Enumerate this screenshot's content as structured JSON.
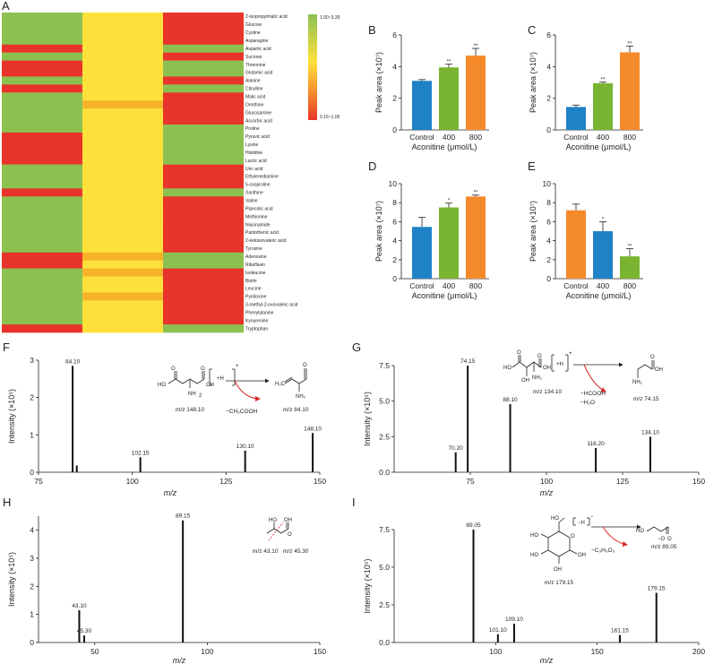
{
  "heatmap": {
    "label": "A",
    "metabolites": [
      "2-isopropylmalic acid",
      "Glucose",
      "Cystine",
      "Asparagine",
      "Aspartic acid",
      "Sucrose",
      "Threonine",
      "Glutamic acid",
      "Alanine",
      "Citrulline",
      "Malic acid",
      "Ornithine",
      "Glucosamine",
      "Ascorbic acid",
      "Proline",
      "Pyruvic acid",
      "Lysine",
      "Histidine",
      "Lactic acid",
      "Uric acid",
      "Ethylenediamine",
      "5-oxoproline",
      "Xanthine",
      "Valine",
      "Pipecolic acid",
      "Methionine",
      "Niacinamide",
      "Pantothenic acid",
      "2-ketoisovaleric acid",
      "Tyrosine",
      "Adenosine",
      "Riboflavin",
      "Isoleucine",
      "Biotin",
      "Leucine",
      "Pyridoxine",
      "3-methyl-2-oxovaleric acid",
      "Phenylalanine",
      "Kynurenine",
      "Tryptophan"
    ],
    "cells": [
      [
        "g",
        "y",
        "r"
      ],
      [
        "g",
        "y",
        "r"
      ],
      [
        "g",
        "y",
        "r"
      ],
      [
        "g",
        "y",
        "r"
      ],
      [
        "r",
        "y",
        "g"
      ],
      [
        "g",
        "y",
        "r"
      ],
      [
        "r",
        "y",
        "g"
      ],
      [
        "r",
        "y",
        "g"
      ],
      [
        "g",
        "y",
        "r"
      ],
      [
        "r",
        "y",
        "g"
      ],
      [
        "g",
        "y",
        "r"
      ],
      [
        "g",
        "o",
        "r"
      ],
      [
        "g",
        "y",
        "r"
      ],
      [
        "g",
        "y",
        "r"
      ],
      [
        "g",
        "y",
        "g"
      ],
      [
        "r",
        "y",
        "g"
      ],
      [
        "r",
        "y",
        "g"
      ],
      [
        "r",
        "y",
        "g"
      ],
      [
        "r",
        "y",
        "g"
      ],
      [
        "g",
        "y",
        "r"
      ],
      [
        "g",
        "y",
        "r"
      ],
      [
        "g",
        "y",
        "r"
      ],
      [
        "r",
        "y",
        "g"
      ],
      [
        "g",
        "y",
        "r"
      ],
      [
        "g",
        "y",
        "r"
      ],
      [
        "g",
        "y",
        "r"
      ],
      [
        "g",
        "y",
        "r"
      ],
      [
        "g",
        "y",
        "r"
      ],
      [
        "g",
        "y",
        "r"
      ],
      [
        "g",
        "y",
        "r"
      ],
      [
        "r",
        "o",
        "g"
      ],
      [
        "r",
        "y",
        "g"
      ],
      [
        "g",
        "o",
        "r"
      ],
      [
        "g",
        "y",
        "r"
      ],
      [
        "g",
        "y",
        "r"
      ],
      [
        "g",
        "o",
        "r"
      ],
      [
        "g",
        "y",
        "r"
      ],
      [
        "g",
        "y",
        "r"
      ],
      [
        "g",
        "y",
        "r"
      ],
      [
        "r",
        "y",
        "g"
      ]
    ],
    "colors": {
      "g": "#8cc152",
      "y": "#fde13a",
      "o": "#f7b22a",
      "r": "#e8342a"
    },
    "legend": {
      "high": "1.00~3.39",
      "low": "0.16~1.00"
    }
  },
  "bar_panels": {
    "xlabel": "Aconitine (μmol/L)",
    "ylabel": "Peak area (×10⁷)",
    "categories": [
      "Control",
      "400",
      "800"
    ],
    "colors": [
      "#1f82c7",
      "#7ab532",
      "#f58a2b"
    ],
    "colors_E": [
      "#f58a2b",
      "#1f82c7",
      "#7ab532"
    ],
    "sig": "**"
  },
  "spectra": {
    "xlabel": "m/z",
    "ylabel": "Intensity (×10⁵)"
  },
  "chemistry": {
    "F": {
      "parent": "m/z 148.10",
      "product": "m/z 84.10",
      "loss": "−CH₃COOH"
    },
    "G": {
      "parent": "m/z 134.10",
      "product": "m/z 74.15",
      "loss1": "−HCOOH",
      "loss2": "−H₂O"
    },
    "H": {
      "left": "m/z 43.10",
      "right": "m/z 45.30"
    },
    "I": {
      "parent": "m/z 179.15",
      "product": "m/z 89.05",
      "loss": "−C₃H₆O₃"
    }
  },
  "chart_data": [
    {
      "panel": "B",
      "type": "bar",
      "categories": [
        "Control",
        "400",
        "800"
      ],
      "values": [
        3.1,
        3.95,
        4.7
      ],
      "errors": [
        0.08,
        0.2,
        0.45
      ],
      "significance": [
        "",
        "**",
        "**"
      ],
      "ylim": [
        0,
        6
      ],
      "yticks": [
        0,
        2,
        4,
        6
      ],
      "ylabel": "Peak area (×10⁷)",
      "xlabel": "Aconitine (μmol/L)"
    },
    {
      "panel": "C",
      "type": "bar",
      "categories": [
        "Control",
        "400",
        "800"
      ],
      "values": [
        1.45,
        2.95,
        4.9
      ],
      "errors": [
        0.12,
        0.07,
        0.4
      ],
      "significance": [
        "",
        "**",
        "**"
      ],
      "ylim": [
        0,
        6
      ],
      "yticks": [
        0,
        2,
        4,
        6
      ],
      "ylabel": "Peak area (×10⁷)",
      "xlabel": "Aconitine (μmol/L)"
    },
    {
      "panel": "D",
      "type": "bar",
      "categories": [
        "Control",
        "400",
        "800"
      ],
      "values": [
        5.45,
        7.5,
        8.65
      ],
      "errors": [
        1.0,
        0.45,
        0.15
      ],
      "significance": [
        "",
        "*",
        "**"
      ],
      "ylim": [
        0,
        10
      ],
      "yticks": [
        0,
        2,
        4,
        6,
        8,
        10
      ],
      "ylabel": "Peak area (×10⁷)",
      "xlabel": "Aconitine (μmol/L)"
    },
    {
      "panel": "E",
      "type": "bar",
      "categories": [
        "Control",
        "400",
        "800"
      ],
      "values": [
        7.2,
        5.0,
        2.35
      ],
      "errors": [
        0.65,
        1.0,
        0.8
      ],
      "significance": [
        "",
        "*",
        "**"
      ],
      "ylim": [
        0,
        10
      ],
      "yticks": [
        0,
        2,
        4,
        6,
        8,
        10
      ],
      "ylabel": "Peak area (×10⁷)",
      "xlabel": "Aconitine (μmol/L)"
    },
    {
      "panel": "F",
      "type": "spectrum",
      "xlim": [
        75,
        150
      ],
      "xticks": [
        75,
        100,
        125,
        150
      ],
      "ylim": [
        0,
        3
      ],
      "yticks": [
        0,
        1,
        2,
        3
      ],
      "peaks": [
        [
          84.1,
          2.85,
          "84.10"
        ],
        [
          85.2,
          0.18,
          ""
        ],
        [
          102.15,
          0.4,
          "102.15"
        ],
        [
          130.1,
          0.58,
          "130.10"
        ],
        [
          148.1,
          1.05,
          "148.10"
        ]
      ],
      "xlabel": "m/z",
      "ylabel": "Intensity (×10⁵)"
    },
    {
      "panel": "G",
      "type": "spectrum",
      "xlim": [
        50,
        150
      ],
      "xticks": [
        75,
        100,
        125,
        150
      ],
      "ylim": [
        0,
        7.5
      ],
      "yticks": [
        0,
        2.5,
        5.0,
        7.5
      ],
      "peaks": [
        [
          70.2,
          1.4,
          "70.20"
        ],
        [
          74.15,
          7.5,
          "74.15"
        ],
        [
          88.1,
          4.8,
          "88.10"
        ],
        [
          116.2,
          1.7,
          "116.20"
        ],
        [
          134.1,
          2.5,
          "134.10"
        ]
      ],
      "xlabel": "m/z",
      "ylabel": "Intensity (×10⁵)"
    },
    {
      "panel": "H",
      "type": "spectrum",
      "xlim": [
        25,
        150
      ],
      "xticks": [
        50,
        100,
        150
      ],
      "ylim": [
        0,
        4.5
      ],
      "yticks": [
        0,
        1,
        2,
        3,
        4
      ],
      "peaks": [
        [
          43.1,
          1.15,
          "43.10"
        ],
        [
          45.3,
          0.25,
          "45.30"
        ],
        [
          89.15,
          4.35,
          "89.15"
        ]
      ],
      "xlabel": "m/z",
      "ylabel": "Intensity (×10⁵)"
    },
    {
      "panel": "I",
      "type": "spectrum",
      "xlim": [
        50,
        200
      ],
      "xticks": [
        100,
        150,
        200
      ],
      "ylim": [
        0,
        7.5
      ],
      "yticks": [
        0,
        2.5,
        5.0,
        7.5
      ],
      "peaks": [
        [
          89.05,
          7.5,
          "89.05"
        ],
        [
          101.1,
          0.55,
          "101.10"
        ],
        [
          109.1,
          1.25,
          "109.10"
        ],
        [
          161.15,
          0.5,
          "161.15"
        ],
        [
          179.15,
          3.3,
          "179.15"
        ]
      ],
      "xlabel": "m/z",
      "ylabel": "Intensity (×10⁵)"
    }
  ]
}
